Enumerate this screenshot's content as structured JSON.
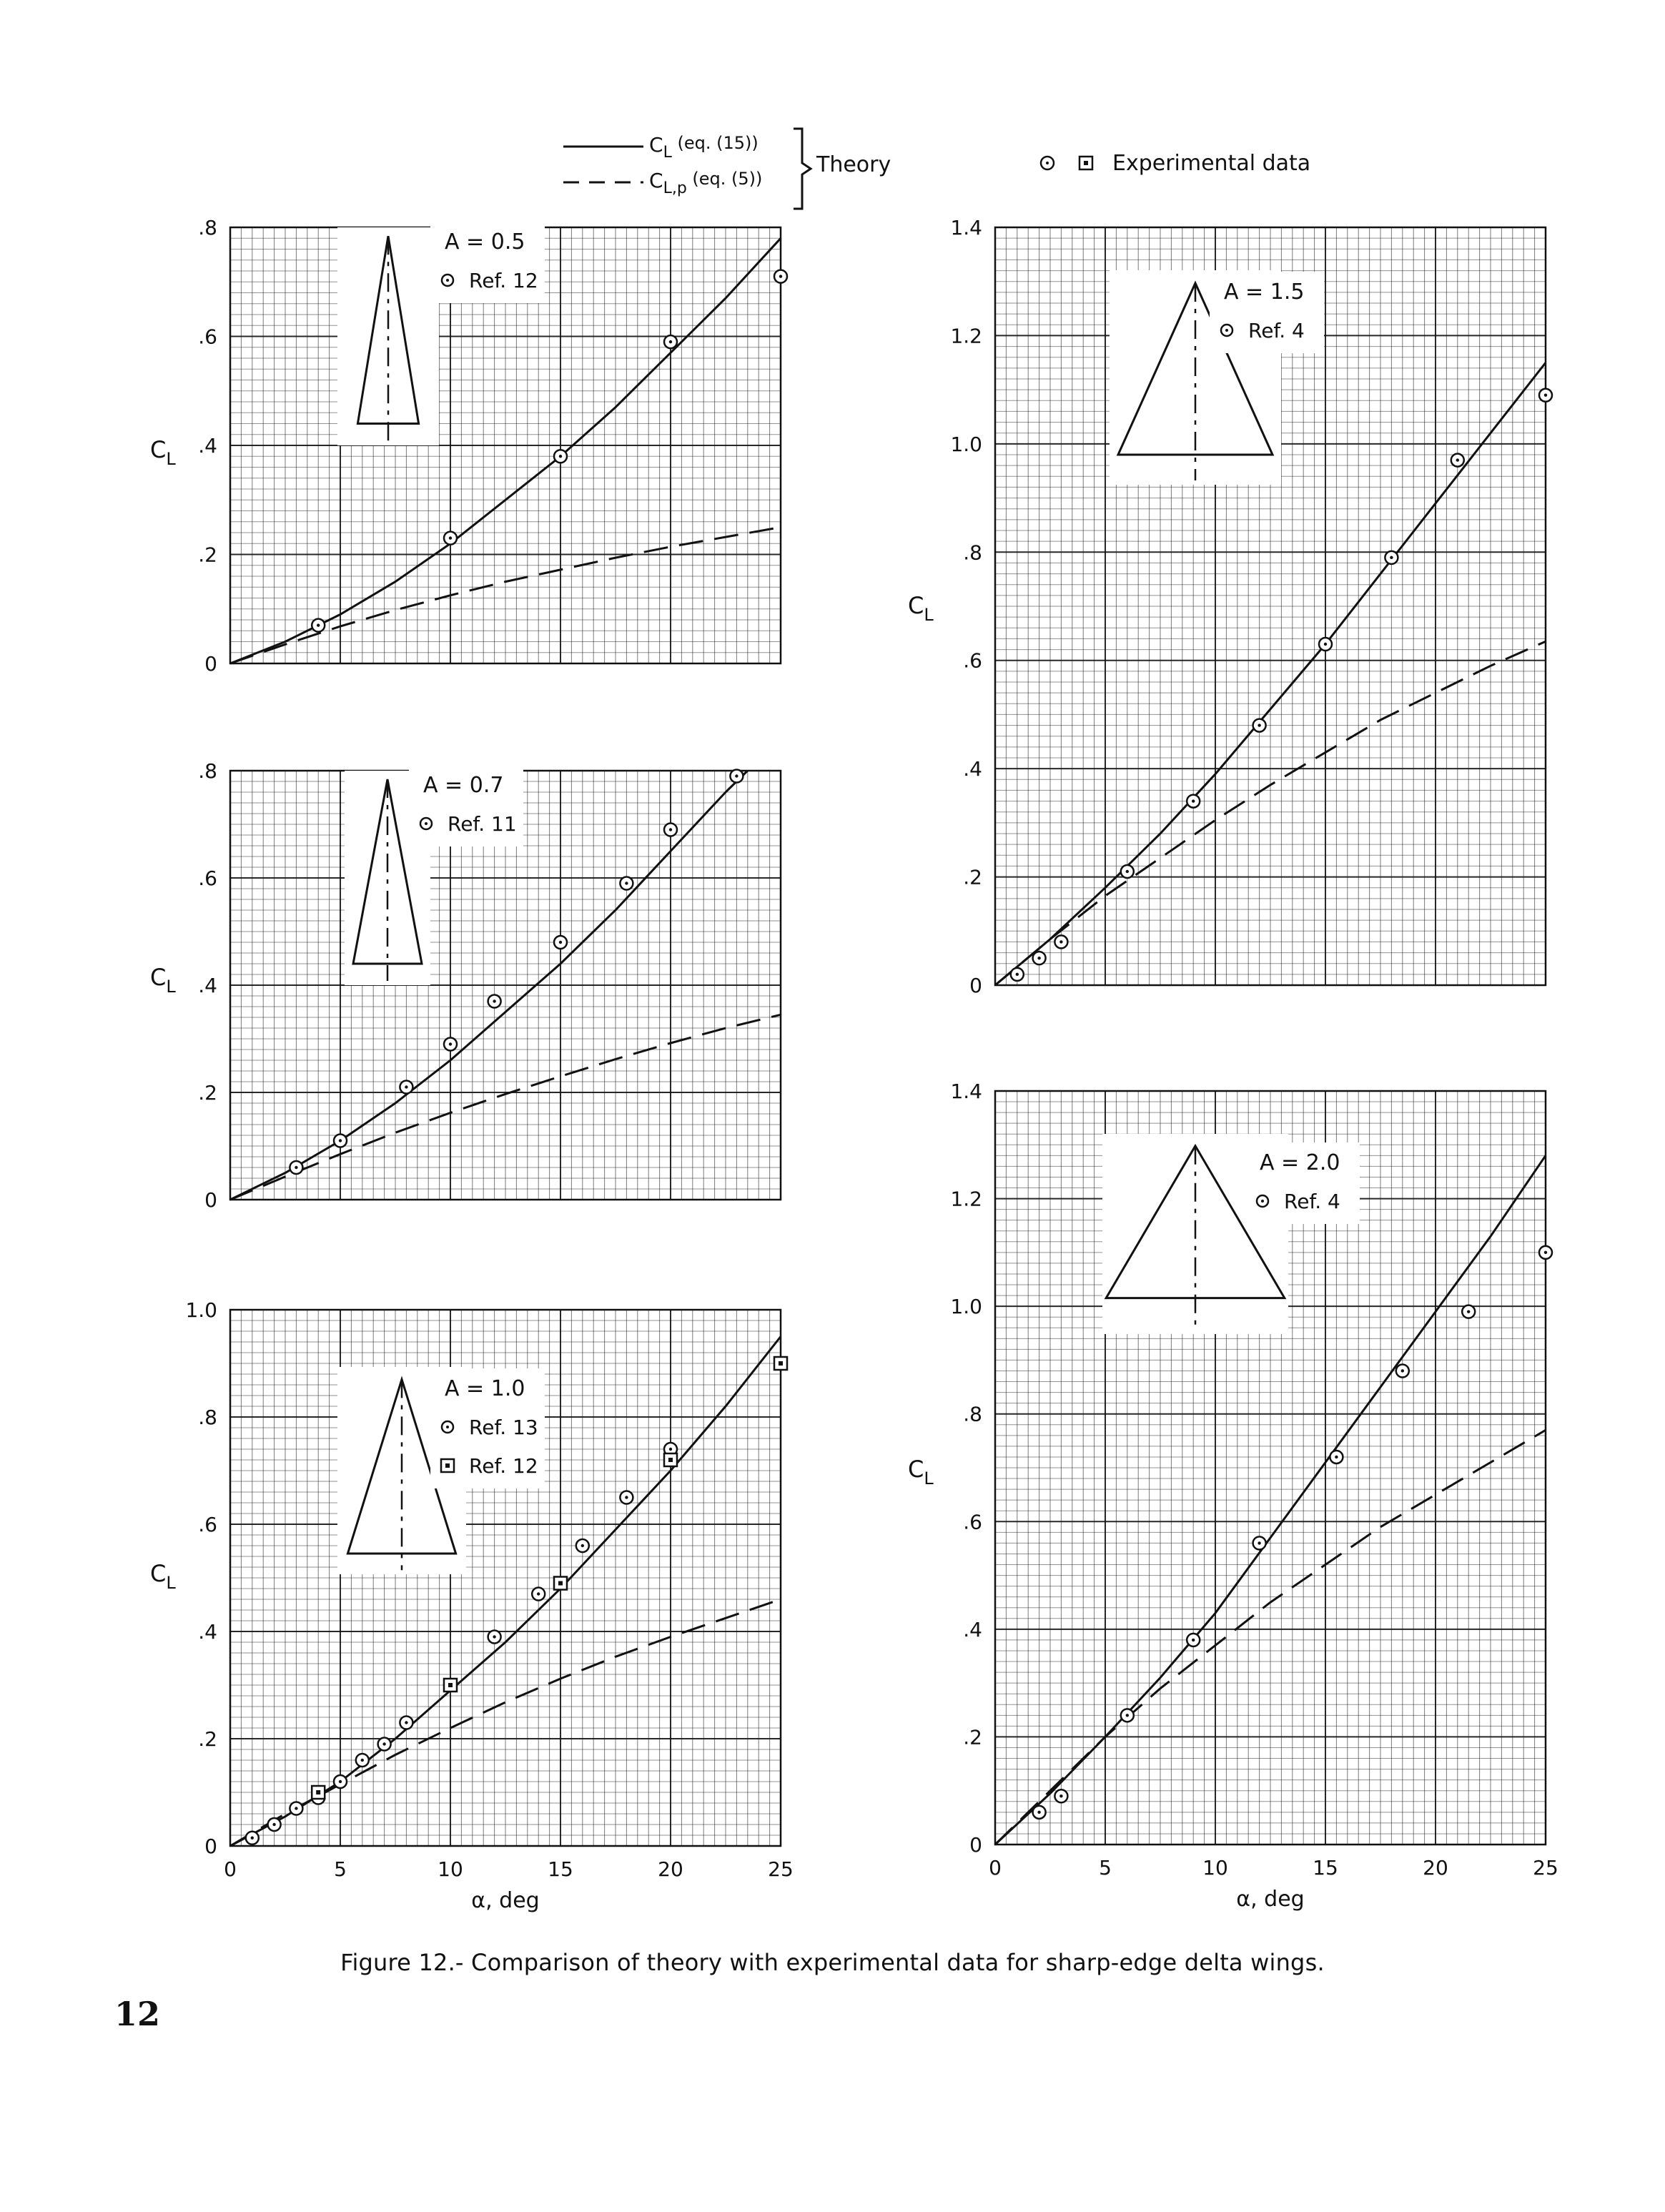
{
  "legend": {
    "theory_cl": "C_L (eq. (15))",
    "theory_clp": "C_L,p (eq. (5))",
    "theory_label": "Theory",
    "experimental": "Experimental data"
  },
  "caption": "Figure 12.- Comparison of theory with experimental data for sharp-edge delta wings.",
  "page_number": "12",
  "colors": {
    "ink": "#111111",
    "paper": "#ffffff"
  },
  "chart_data": [
    {
      "type": "line",
      "panel": "A = 0.5",
      "aspect_ratio_label": "A = 0.5",
      "xlim": [
        0,
        25
      ],
      "ylim": [
        0,
        0.8
      ],
      "x_ticks": [],
      "y_ticks": [
        "0",
        ".2",
        ".4",
        ".6",
        ".8"
      ],
      "ylabel": "C_L",
      "xlabel": "",
      "refs": [
        {
          "symbol": "circle",
          "label": "Ref. 12"
        }
      ],
      "series": [
        {
          "name": "C_L (eq. (15))",
          "style": "solid",
          "x": [
            0,
            2.5,
            5,
            7.5,
            10,
            12.5,
            15,
            17.5,
            20,
            22.5,
            25
          ],
          "y": [
            0,
            0.04,
            0.09,
            0.15,
            0.22,
            0.3,
            0.38,
            0.47,
            0.57,
            0.67,
            0.78
          ]
        },
        {
          "name": "C_L,p (eq. (5))",
          "style": "dashed",
          "x": [
            0,
            2.5,
            5,
            7.5,
            10,
            12.5,
            15,
            17.5,
            20,
            22.5,
            25
          ],
          "y": [
            0,
            0.035,
            0.068,
            0.098,
            0.125,
            0.15,
            0.172,
            0.194,
            0.214,
            0.232,
            0.25
          ]
        },
        {
          "name": "Ref. 12",
          "style": "circle",
          "x": [
            4,
            10,
            15,
            20,
            25
          ],
          "y": [
            0.07,
            0.23,
            0.38,
            0.59,
            0.71
          ]
        }
      ]
    },
    {
      "type": "line",
      "panel": "A = 0.7",
      "aspect_ratio_label": "A = 0.7",
      "xlim": [
        0,
        25
      ],
      "ylim": [
        0,
        0.8
      ],
      "x_ticks": [],
      "y_ticks": [
        "0",
        ".2",
        ".4",
        ".6",
        ".8"
      ],
      "ylabel": "C_L",
      "xlabel": "",
      "refs": [
        {
          "symbol": "circle",
          "label": "Ref. 11"
        }
      ],
      "series": [
        {
          "name": "C_L (eq. (15))",
          "style": "solid",
          "x": [
            0,
            2.5,
            5,
            7.5,
            10,
            12.5,
            15,
            17.5,
            20,
            22.5,
            23.5
          ],
          "y": [
            0,
            0.05,
            0.11,
            0.18,
            0.26,
            0.35,
            0.44,
            0.54,
            0.65,
            0.76,
            0.8
          ]
        },
        {
          "name": "C_L,p (eq. (5))",
          "style": "dashed",
          "x": [
            0,
            2.5,
            5,
            7.5,
            10,
            12.5,
            15,
            17.5,
            20,
            22.5,
            25
          ],
          "y": [
            0,
            0.043,
            0.085,
            0.125,
            0.162,
            0.197,
            0.23,
            0.262,
            0.292,
            0.32,
            0.345
          ]
        },
        {
          "name": "Ref. 11",
          "style": "circle",
          "x": [
            3,
            5,
            8,
            10,
            12,
            15,
            18,
            20,
            23
          ],
          "y": [
            0.06,
            0.11,
            0.21,
            0.29,
            0.37,
            0.48,
            0.59,
            0.69,
            0.79
          ]
        }
      ]
    },
    {
      "type": "line",
      "panel": "A = 1.0",
      "aspect_ratio_label": "A = 1.0",
      "xlim": [
        0,
        25
      ],
      "ylim": [
        0,
        1.0
      ],
      "x_ticks": [
        "0",
        "5",
        "10",
        "15",
        "20",
        "25"
      ],
      "y_ticks": [
        "0",
        ".2",
        ".4",
        ".6",
        ".8",
        "1.0"
      ],
      "ylabel": "C_L",
      "xlabel": "α, deg",
      "refs": [
        {
          "symbol": "circle",
          "label": "Ref. 13"
        },
        {
          "symbol": "square",
          "label": "Ref. 12"
        }
      ],
      "series": [
        {
          "name": "C_L (eq. (15))",
          "style": "solid",
          "x": [
            0,
            2.5,
            5,
            7.5,
            10,
            12.5,
            15,
            17.5,
            20,
            22.5,
            25
          ],
          "y": [
            0,
            0.055,
            0.12,
            0.2,
            0.29,
            0.38,
            0.48,
            0.59,
            0.7,
            0.82,
            0.95
          ]
        },
        {
          "name": "C_L,p (eq. (5))",
          "style": "dashed",
          "x": [
            0,
            2.5,
            5,
            7.5,
            10,
            12.5,
            15,
            17.5,
            20,
            22.5,
            25
          ],
          "y": [
            0,
            0.06,
            0.115,
            0.17,
            0.22,
            0.268,
            0.312,
            0.353,
            0.39,
            0.425,
            0.46
          ]
        },
        {
          "name": "Ref. 13",
          "style": "circle",
          "x": [
            1,
            2,
            3,
            4,
            5,
            6,
            7,
            8,
            10,
            12,
            14,
            16,
            18,
            20
          ],
          "y": [
            0.015,
            0.04,
            0.07,
            0.09,
            0.12,
            0.16,
            0.19,
            0.23,
            0.3,
            0.39,
            0.47,
            0.56,
            0.65,
            0.74
          ]
        },
        {
          "name": "Ref. 12",
          "style": "square",
          "x": [
            4,
            10,
            15,
            20,
            25
          ],
          "y": [
            0.1,
            0.3,
            0.49,
            0.72,
            0.9
          ]
        }
      ]
    },
    {
      "type": "line",
      "panel": "A = 1.5",
      "aspect_ratio_label": "A = 1.5",
      "xlim": [
        0,
        25
      ],
      "ylim": [
        0,
        1.4
      ],
      "x_ticks": [],
      "y_ticks": [
        "0",
        ".2",
        ".4",
        ".6",
        ".8",
        "1.0",
        "1.2",
        "1.4"
      ],
      "ylabel": "C_L",
      "xlabel": "",
      "refs": [
        {
          "symbol": "circle",
          "label": "Ref. 4"
        }
      ],
      "series": [
        {
          "name": "C_L (eq. (15))",
          "style": "solid",
          "x": [
            0,
            2.5,
            5,
            7.5,
            10,
            12.5,
            15,
            17.5,
            20,
            22.5,
            25
          ],
          "y": [
            0,
            0.085,
            0.18,
            0.28,
            0.39,
            0.51,
            0.63,
            0.76,
            0.89,
            1.02,
            1.15
          ]
        },
        {
          "name": "C_L,p (eq. (5))",
          "style": "dashed",
          "x": [
            0,
            2.5,
            5,
            7.5,
            10,
            12.5,
            15,
            17.5,
            20,
            22.5,
            25
          ],
          "y": [
            0,
            0.085,
            0.165,
            0.235,
            0.305,
            0.37,
            0.43,
            0.49,
            0.54,
            0.59,
            0.635
          ]
        },
        {
          "name": "Ref. 4",
          "style": "circle",
          "x": [
            1,
            2,
            3,
            6,
            9,
            12,
            15,
            18,
            21,
            25
          ],
          "y": [
            0.02,
            0.05,
            0.08,
            0.21,
            0.34,
            0.48,
            0.63,
            0.79,
            0.97,
            1.09
          ]
        }
      ]
    },
    {
      "type": "line",
      "panel": "A = 2.0",
      "aspect_ratio_label": "A = 2.0",
      "xlim": [
        0,
        25
      ],
      "ylim": [
        0,
        1.4
      ],
      "x_ticks": [
        "0",
        "5",
        "10",
        "15",
        "20",
        "25"
      ],
      "y_ticks": [
        "0",
        ".2",
        ".4",
        ".6",
        ".8",
        "1.0",
        "1.2",
        "1.4"
      ],
      "ylabel": "C_L",
      "xlabel": "α, deg",
      "refs": [
        {
          "symbol": "circle",
          "label": "Ref. 4"
        }
      ],
      "series": [
        {
          "name": "C_L (eq. (15))",
          "style": "solid",
          "x": [
            0,
            2.5,
            5,
            7.5,
            10,
            12.5,
            15,
            17.5,
            20,
            22.5,
            25
          ],
          "y": [
            0,
            0.095,
            0.2,
            0.31,
            0.43,
            0.57,
            0.71,
            0.85,
            0.99,
            1.13,
            1.28
          ]
        },
        {
          "name": "C_L,p (eq. (5))",
          "style": "dashed",
          "x": [
            0,
            2.5,
            5,
            7.5,
            10,
            12.5,
            15,
            17.5,
            20,
            22.5,
            25
          ],
          "y": [
            0,
            0.1,
            0.2,
            0.29,
            0.37,
            0.45,
            0.52,
            0.59,
            0.65,
            0.71,
            0.77
          ]
        },
        {
          "name": "Ref. 4",
          "style": "circle",
          "x": [
            2,
            3,
            6,
            9,
            12,
            15.5,
            18.5,
            21.5,
            25
          ],
          "y": [
            0.06,
            0.09,
            0.24,
            0.38,
            0.56,
            0.72,
            0.88,
            0.99,
            1.1
          ]
        }
      ]
    }
  ]
}
